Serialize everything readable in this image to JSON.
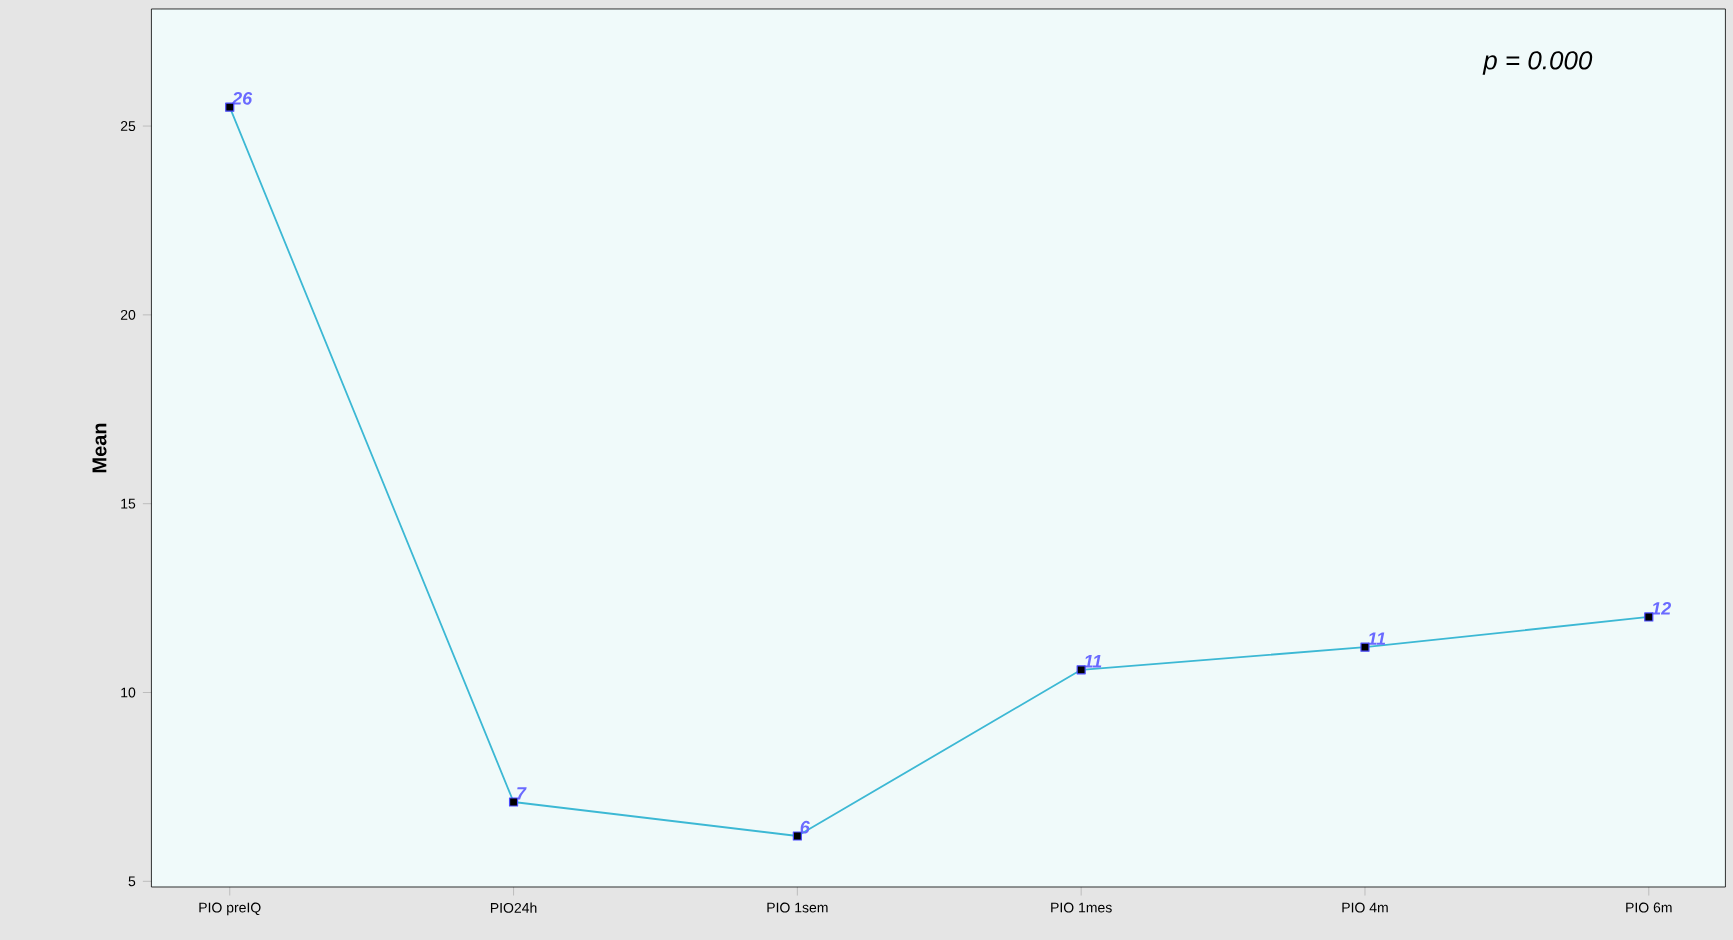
{
  "chart_data": {
    "type": "line",
    "ylabel": "Mean",
    "categories": [
      "PIO preIQ",
      "PIO24h",
      "PIO 1sem",
      "PIO 1mes",
      "PIO 4m",
      "PIO 6m"
    ],
    "values": [
      25.5,
      7.1,
      6.2,
      10.6,
      11.2,
      12.0
    ],
    "value_labels": [
      "26",
      "7",
      "6",
      "11",
      "11",
      "12"
    ],
    "color": "#3cb8d4",
    "marker": "square",
    "ylim": [
      4.85,
      28.1
    ],
    "yticks": [
      5,
      10,
      15,
      20,
      25
    ],
    "annotations": [
      "p = 0.000"
    ]
  }
}
